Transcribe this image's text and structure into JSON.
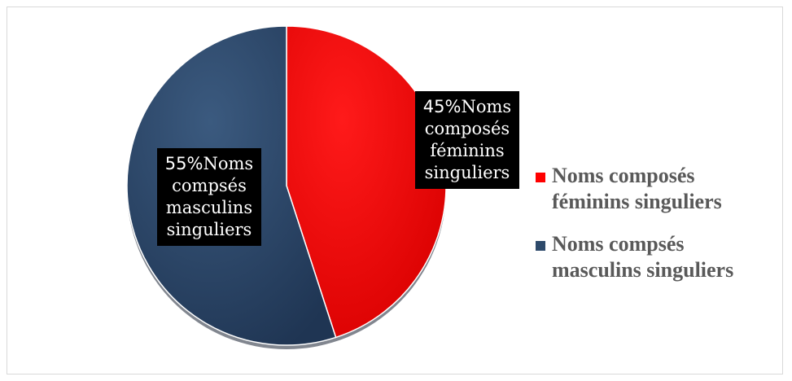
{
  "chart_data": {
    "type": "pie",
    "slices": [
      {
        "label": "Noms composés féminins singuliers",
        "value": 45,
        "data_label_pct": "45%",
        "data_label_lines": [
          "Noms",
          "composés",
          "féminins",
          "singuliers"
        ],
        "color": "#ff0000"
      },
      {
        "label": "Noms compsés masculins singuliers",
        "value": 55,
        "data_label_pct": "55%",
        "data_label_lines": [
          "Noms",
          "compsés",
          "masculins",
          "singuliers"
        ],
        "color": "#2e4a6b"
      }
    ],
    "legend": {
      "position": "right",
      "items": [
        {
          "line1": "Noms composés",
          "line2": "féminins singuliers",
          "color": "#ff0000"
        },
        {
          "line1": "Noms compsés",
          "line2": "masculins singuliers",
          "color": "#2e4a6b"
        }
      ]
    }
  }
}
